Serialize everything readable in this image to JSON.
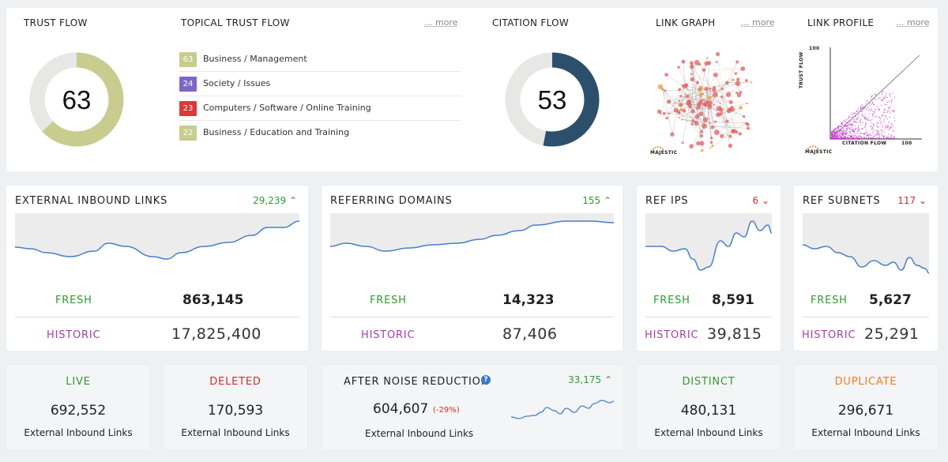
{
  "top": {
    "trust_flow": {
      "label": "TRUST FLOW",
      "value": "63",
      "fraction": 0.63,
      "color": "#c8cc8e"
    },
    "topical": {
      "label": "TOPICAL TRUST FLOW",
      "more": "... more",
      "items": [
        {
          "score": "63",
          "name": "Business / Management",
          "color": "#c8cc8e"
        },
        {
          "score": "24",
          "name": "Society / Issues",
          "color": "#7e67c7"
        },
        {
          "score": "23",
          "name": "Computers / Software / Online Training",
          "color": "#d93a3a"
        },
        {
          "score": "22",
          "name": "Business / Education and Training",
          "color": "#c8cc8e"
        }
      ]
    },
    "citation_flow": {
      "label": "CITATION FLOW",
      "value": "53",
      "fraction": 0.53,
      "color": "#2c4f6b"
    },
    "link_graph": {
      "label": "LINK GRAPH",
      "more": "... more",
      "logo": "MAJESTIC"
    },
    "link_profile": {
      "label": "LINK PROFILE",
      "more": "... more",
      "ylabel": "TRUST FLOW",
      "xlabel": "CITATION FLOW",
      "ymax": "100",
      "xmax": "100",
      "logo": "MAJESTIC"
    }
  },
  "metrics": [
    {
      "title": "EXTERNAL INBOUND LINKS",
      "delta": "29,239",
      "dir": "up",
      "fresh_label": "FRESH",
      "fresh": "863,145",
      "historic_label": "HISTORIC",
      "historic": "17,825,400"
    },
    {
      "title": "REFERRING DOMAINS",
      "delta": "155",
      "dir": "up",
      "fresh_label": "FRESH",
      "fresh": "14,323",
      "historic_label": "HISTORIC",
      "historic": "87,406"
    },
    {
      "title": "REF IPS",
      "delta": "6",
      "dir": "down",
      "fresh_label": "FRESH",
      "fresh": "8,591",
      "historic_label": "HISTORIC",
      "historic": "39,815"
    },
    {
      "title": "REF SUBNETS",
      "delta": "117",
      "dir": "down",
      "fresh_label": "FRESH",
      "fresh": "5,627",
      "historic_label": "HISTORIC",
      "historic": "25,291"
    }
  ],
  "bottom": {
    "live": {
      "label": "LIVE",
      "value": "692,552",
      "sub": "External Inbound Links"
    },
    "deleted": {
      "label": "DELETED",
      "value": "170,593",
      "sub": "External Inbound Links"
    },
    "noise": {
      "label": "AFTER NOISE REDUCTION",
      "help": "?",
      "delta": "33,175",
      "value": "604,607",
      "pct": "(-29%)",
      "sub": "External Inbound Links"
    },
    "distinct": {
      "label": "DISTINCT",
      "value": "480,131",
      "sub": "External Inbound Links"
    },
    "duplicate": {
      "label": "DUPLICATE",
      "value": "296,671",
      "sub": "External Inbound Links"
    }
  },
  "colors": {
    "fresh": "#2f9a2f",
    "historic": "#a53fa5",
    "up": "#2f9a2f",
    "down": "#cc2f2f",
    "line": "#4a7fc8",
    "graph_node": "#e06060"
  }
}
